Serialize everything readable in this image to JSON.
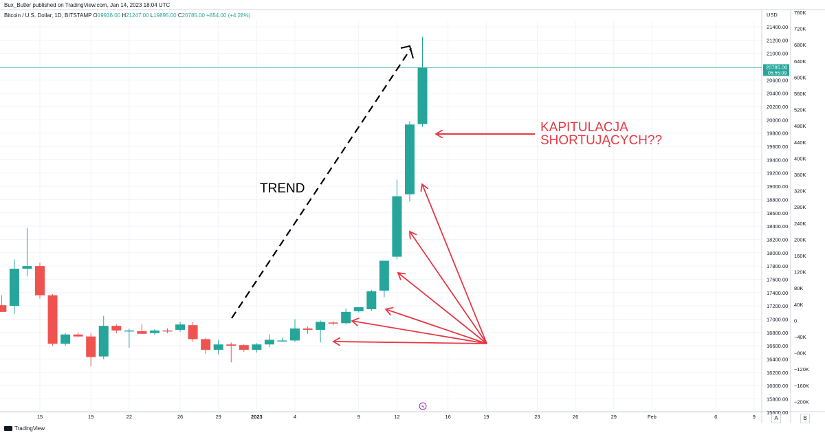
{
  "header": {
    "published": "Bux_Butler published on TradingView.com, Jan 14, 2023 18:04 UTC",
    "symbol": "Bitcoin / U.S. Dollar, 1D, BITSTAMP",
    "ohlc": {
      "O": "19936.00",
      "H": "21247.00",
      "L": "19895.00",
      "C": "20785.00",
      "change": "+854.00 (+4.28%)"
    }
  },
  "footer": {
    "brand": "TradingView"
  },
  "scale_buttons": [
    "A",
    "B"
  ],
  "colors": {
    "up": "#26a69a",
    "down": "#ef5350",
    "annotation": "#e53945",
    "trend": "#000000",
    "grid": "#f0f3fa",
    "axis_text": "#131722",
    "price_line": "#26a69a"
  },
  "chart_data": {
    "type": "candlestick",
    "currency_label": "USD",
    "y_ticks_left": [
      "21400.00",
      "21200.00",
      "21000.00",
      "20800.00",
      "20600.00",
      "20400.00",
      "20200.00",
      "20000.00",
      "19800.00",
      "19600.00",
      "19400.00",
      "19200.00",
      "19000.00",
      "18800.00",
      "18600.00",
      "18400.00",
      "18200.00",
      "18000.00",
      "17800.00",
      "17600.00",
      "17400.00",
      "17200.00",
      "17000.00",
      "16800.00",
      "16600.00",
      "16400.00",
      "16200.00",
      "16000.00",
      "15800.00",
      "15600.00"
    ],
    "y_ticks_right": [
      "760K",
      "720K",
      "680K",
      "640K",
      "600K",
      "560K",
      "520K",
      "480K",
      "440K",
      "400K",
      "360K",
      "320K",
      "280K",
      "240K",
      "200K",
      "160K",
      "120K",
      "80K",
      "40K",
      "0",
      "−40K",
      "−80K",
      "−120K",
      "−160K",
      "−200K"
    ],
    "x_ticks": [
      {
        "label": "15",
        "day": 0
      },
      {
        "label": "19",
        "day": 4
      },
      {
        "label": "22",
        "day": 7
      },
      {
        "label": "26",
        "day": 11
      },
      {
        "label": "29",
        "day": 14
      },
      {
        "label": "2023",
        "day": 17
      },
      {
        "label": "4",
        "day": 20
      },
      {
        "label": "9",
        "day": 25
      },
      {
        "label": "12",
        "day": 28
      },
      {
        "label": "16",
        "day": 32
      },
      {
        "label": "19",
        "day": 35
      },
      {
        "label": "23",
        "day": 39
      },
      {
        "label": "26",
        "day": 42
      },
      {
        "label": "29",
        "day": 45
      },
      {
        "label": "Feb",
        "day": 48
      },
      {
        "label": "6",
        "day": 53
      },
      {
        "label": "9",
        "day": 56
      }
    ],
    "candles": [
      {
        "day": -3,
        "o": 17210,
        "h": 17360,
        "l": 17110,
        "c": 17110
      },
      {
        "day": -2,
        "o": 17200,
        "h": 17900,
        "l": 17080,
        "c": 17760
      },
      {
        "day": -1,
        "o": 17760,
        "h": 18370,
        "l": 17650,
        "c": 17800
      },
      {
        "day": 0,
        "o": 17800,
        "h": 17850,
        "l": 17310,
        "c": 17360
      },
      {
        "day": 1,
        "o": 17360,
        "h": 17380,
        "l": 16600,
        "c": 16630
      },
      {
        "day": 2,
        "o": 16630,
        "h": 16790,
        "l": 16600,
        "c": 16770
      },
      {
        "day": 3,
        "o": 16770,
        "h": 16800,
        "l": 16730,
        "c": 16740
      },
      {
        "day": 4,
        "o": 16740,
        "h": 16790,
        "l": 16290,
        "c": 16430
      },
      {
        "day": 5,
        "o": 16440,
        "h": 17050,
        "l": 16400,
        "c": 16900
      },
      {
        "day": 6,
        "o": 16900,
        "h": 16920,
        "l": 16790,
        "c": 16830
      },
      {
        "day": 7,
        "o": 16830,
        "h": 16860,
        "l": 16570,
        "c": 16830
      },
      {
        "day": 8,
        "o": 16820,
        "h": 16930,
        "l": 16780,
        "c": 16780
      },
      {
        "day": 9,
        "o": 16790,
        "h": 16850,
        "l": 16760,
        "c": 16830
      },
      {
        "day": 10,
        "o": 16830,
        "h": 16860,
        "l": 16790,
        "c": 16820
      },
      {
        "day": 11,
        "o": 16840,
        "h": 16960,
        "l": 16810,
        "c": 16920
      },
      {
        "day": 12,
        "o": 16910,
        "h": 16960,
        "l": 16660,
        "c": 16700
      },
      {
        "day": 13,
        "o": 16700,
        "h": 16720,
        "l": 16480,
        "c": 16540
      },
      {
        "day": 14,
        "o": 16540,
        "h": 16690,
        "l": 16470,
        "c": 16620
      },
      {
        "day": 15,
        "o": 16620,
        "h": 16650,
        "l": 16350,
        "c": 16600
      },
      {
        "day": 16,
        "o": 16610,
        "h": 16620,
        "l": 16510,
        "c": 16540
      },
      {
        "day": 17,
        "o": 16540,
        "h": 16640,
        "l": 16500,
        "c": 16620
      },
      {
        "day": 18,
        "o": 16620,
        "h": 16770,
        "l": 16580,
        "c": 16690
      },
      {
        "day": 19,
        "o": 16680,
        "h": 16720,
        "l": 16660,
        "c": 16680
      },
      {
        "day": 20,
        "o": 16680,
        "h": 17000,
        "l": 16660,
        "c": 16860
      },
      {
        "day": 21,
        "o": 16860,
        "h": 16890,
        "l": 16780,
        "c": 16840
      },
      {
        "day": 22,
        "o": 16840,
        "h": 16980,
        "l": 16650,
        "c": 16960
      },
      {
        "day": 23,
        "o": 16950,
        "h": 16970,
        "l": 16910,
        "c": 16940
      },
      {
        "day": 24,
        "o": 16940,
        "h": 17160,
        "l": 16920,
        "c": 17110
      },
      {
        "day": 25,
        "o": 17120,
        "h": 17180,
        "l": 17100,
        "c": 17180
      },
      {
        "day": 26,
        "o": 17150,
        "h": 17440,
        "l": 17120,
        "c": 17420
      },
      {
        "day": 27,
        "o": 17430,
        "h": 17860,
        "l": 17330,
        "c": 17880
      },
      {
        "day": 28,
        "o": 17940,
        "h": 19100,
        "l": 17900,
        "c": 18850
      },
      {
        "day": 29,
        "o": 18880,
        "h": 19980,
        "l": 18770,
        "c": 19930
      },
      {
        "day": 30,
        "o": 19936,
        "h": 21247,
        "l": 19895,
        "c": 20785
      }
    ],
    "last_price": {
      "price_label": "20785.00",
      "countdown": "05:55:09"
    },
    "annotations": {
      "trend": "TREND",
      "kapitulacja_line1": "KAPITULACJA",
      "kapitulacja_line2": "SHORTUJĄCYCH??"
    }
  }
}
